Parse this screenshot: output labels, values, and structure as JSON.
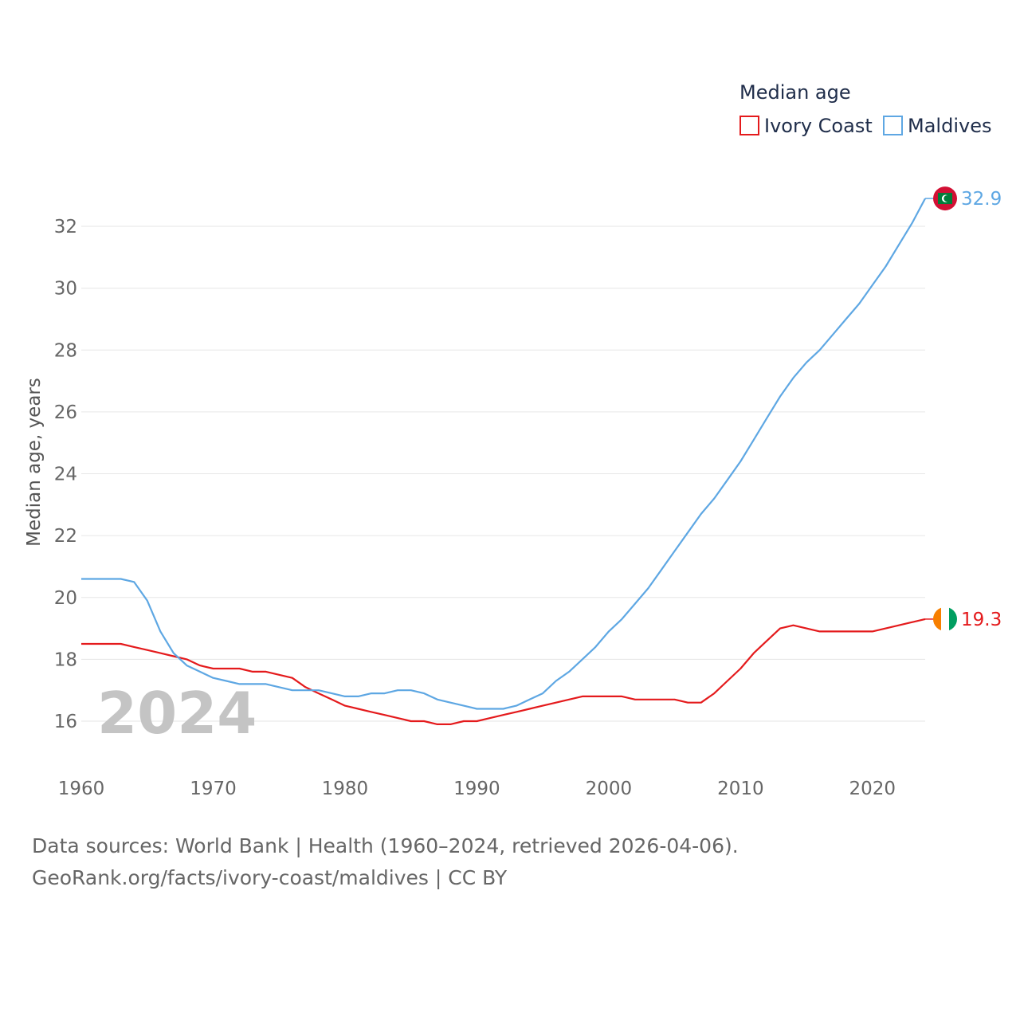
{
  "chart_data": {
    "type": "line",
    "legend_title": "Median age",
    "legend_position": "top-right",
    "ylabel": "Median age, years",
    "xlabel": "",
    "xlim": [
      1960,
      2024
    ],
    "ylim": [
      15,
      33
    ],
    "x_ticks": [
      1960,
      1970,
      1980,
      1990,
      2000,
      2010,
      2020
    ],
    "y_ticks": [
      16,
      18,
      20,
      22,
      24,
      26,
      28,
      30,
      32
    ],
    "grid": true,
    "current_year_label": "2024",
    "x": [
      1960,
      1961,
      1962,
      1963,
      1964,
      1965,
      1966,
      1967,
      1968,
      1969,
      1970,
      1971,
      1972,
      1973,
      1974,
      1975,
      1976,
      1977,
      1978,
      1979,
      1980,
      1981,
      1982,
      1983,
      1984,
      1985,
      1986,
      1987,
      1988,
      1989,
      1990,
      1991,
      1992,
      1993,
      1994,
      1995,
      1996,
      1997,
      1998,
      1999,
      2000,
      2001,
      2002,
      2003,
      2004,
      2005,
      2006,
      2007,
      2008,
      2009,
      2010,
      2011,
      2012,
      2013,
      2014,
      2015,
      2016,
      2017,
      2018,
      2019,
      2020,
      2021,
      2022,
      2023,
      2024
    ],
    "series": [
      {
        "name": "Ivory Coast",
        "color": "#e41a1c",
        "end_label": "19.3",
        "flag": "ivory-coast-flag",
        "values": [
          18.5,
          18.5,
          18.5,
          18.5,
          18.4,
          18.3,
          18.2,
          18.1,
          18.0,
          17.8,
          17.7,
          17.7,
          17.7,
          17.6,
          17.6,
          17.5,
          17.4,
          17.1,
          16.9,
          16.7,
          16.5,
          16.4,
          16.3,
          16.2,
          16.1,
          16.0,
          16.0,
          15.9,
          15.9,
          16.0,
          16.0,
          16.1,
          16.2,
          16.3,
          16.4,
          16.5,
          16.6,
          16.7,
          16.8,
          16.8,
          16.8,
          16.8,
          16.7,
          16.7,
          16.7,
          16.7,
          16.6,
          16.6,
          16.9,
          17.3,
          17.7,
          18.2,
          18.6,
          19.0,
          19.1,
          19.0,
          18.9,
          18.9,
          18.9,
          18.9,
          18.9,
          19.0,
          19.1,
          19.2,
          19.3
        ]
      },
      {
        "name": "Maldives",
        "color": "#5ea7e3",
        "end_label": "32.9",
        "flag": "maldives-flag",
        "values": [
          20.6,
          20.6,
          20.6,
          20.6,
          20.5,
          19.9,
          18.9,
          18.2,
          17.8,
          17.6,
          17.4,
          17.3,
          17.2,
          17.2,
          17.2,
          17.1,
          17.0,
          17.0,
          17.0,
          16.9,
          16.8,
          16.8,
          16.9,
          16.9,
          17.0,
          17.0,
          16.9,
          16.7,
          16.6,
          16.5,
          16.4,
          16.4,
          16.4,
          16.5,
          16.7,
          16.9,
          17.3,
          17.6,
          18.0,
          18.4,
          18.9,
          19.3,
          19.8,
          20.3,
          20.9,
          21.5,
          22.1,
          22.7,
          23.2,
          23.8,
          24.4,
          25.1,
          25.8,
          26.5,
          27.1,
          27.6,
          28.0,
          28.5,
          29.0,
          29.5,
          30.1,
          30.7,
          31.4,
          32.1,
          32.9
        ]
      }
    ]
  },
  "footer": {
    "sources": "Data sources: World Bank | Health (1960–2024, retrieved 2026-04-06).",
    "link": "GeoRank.org/facts/ivory-coast/maldives | CC BY"
  }
}
